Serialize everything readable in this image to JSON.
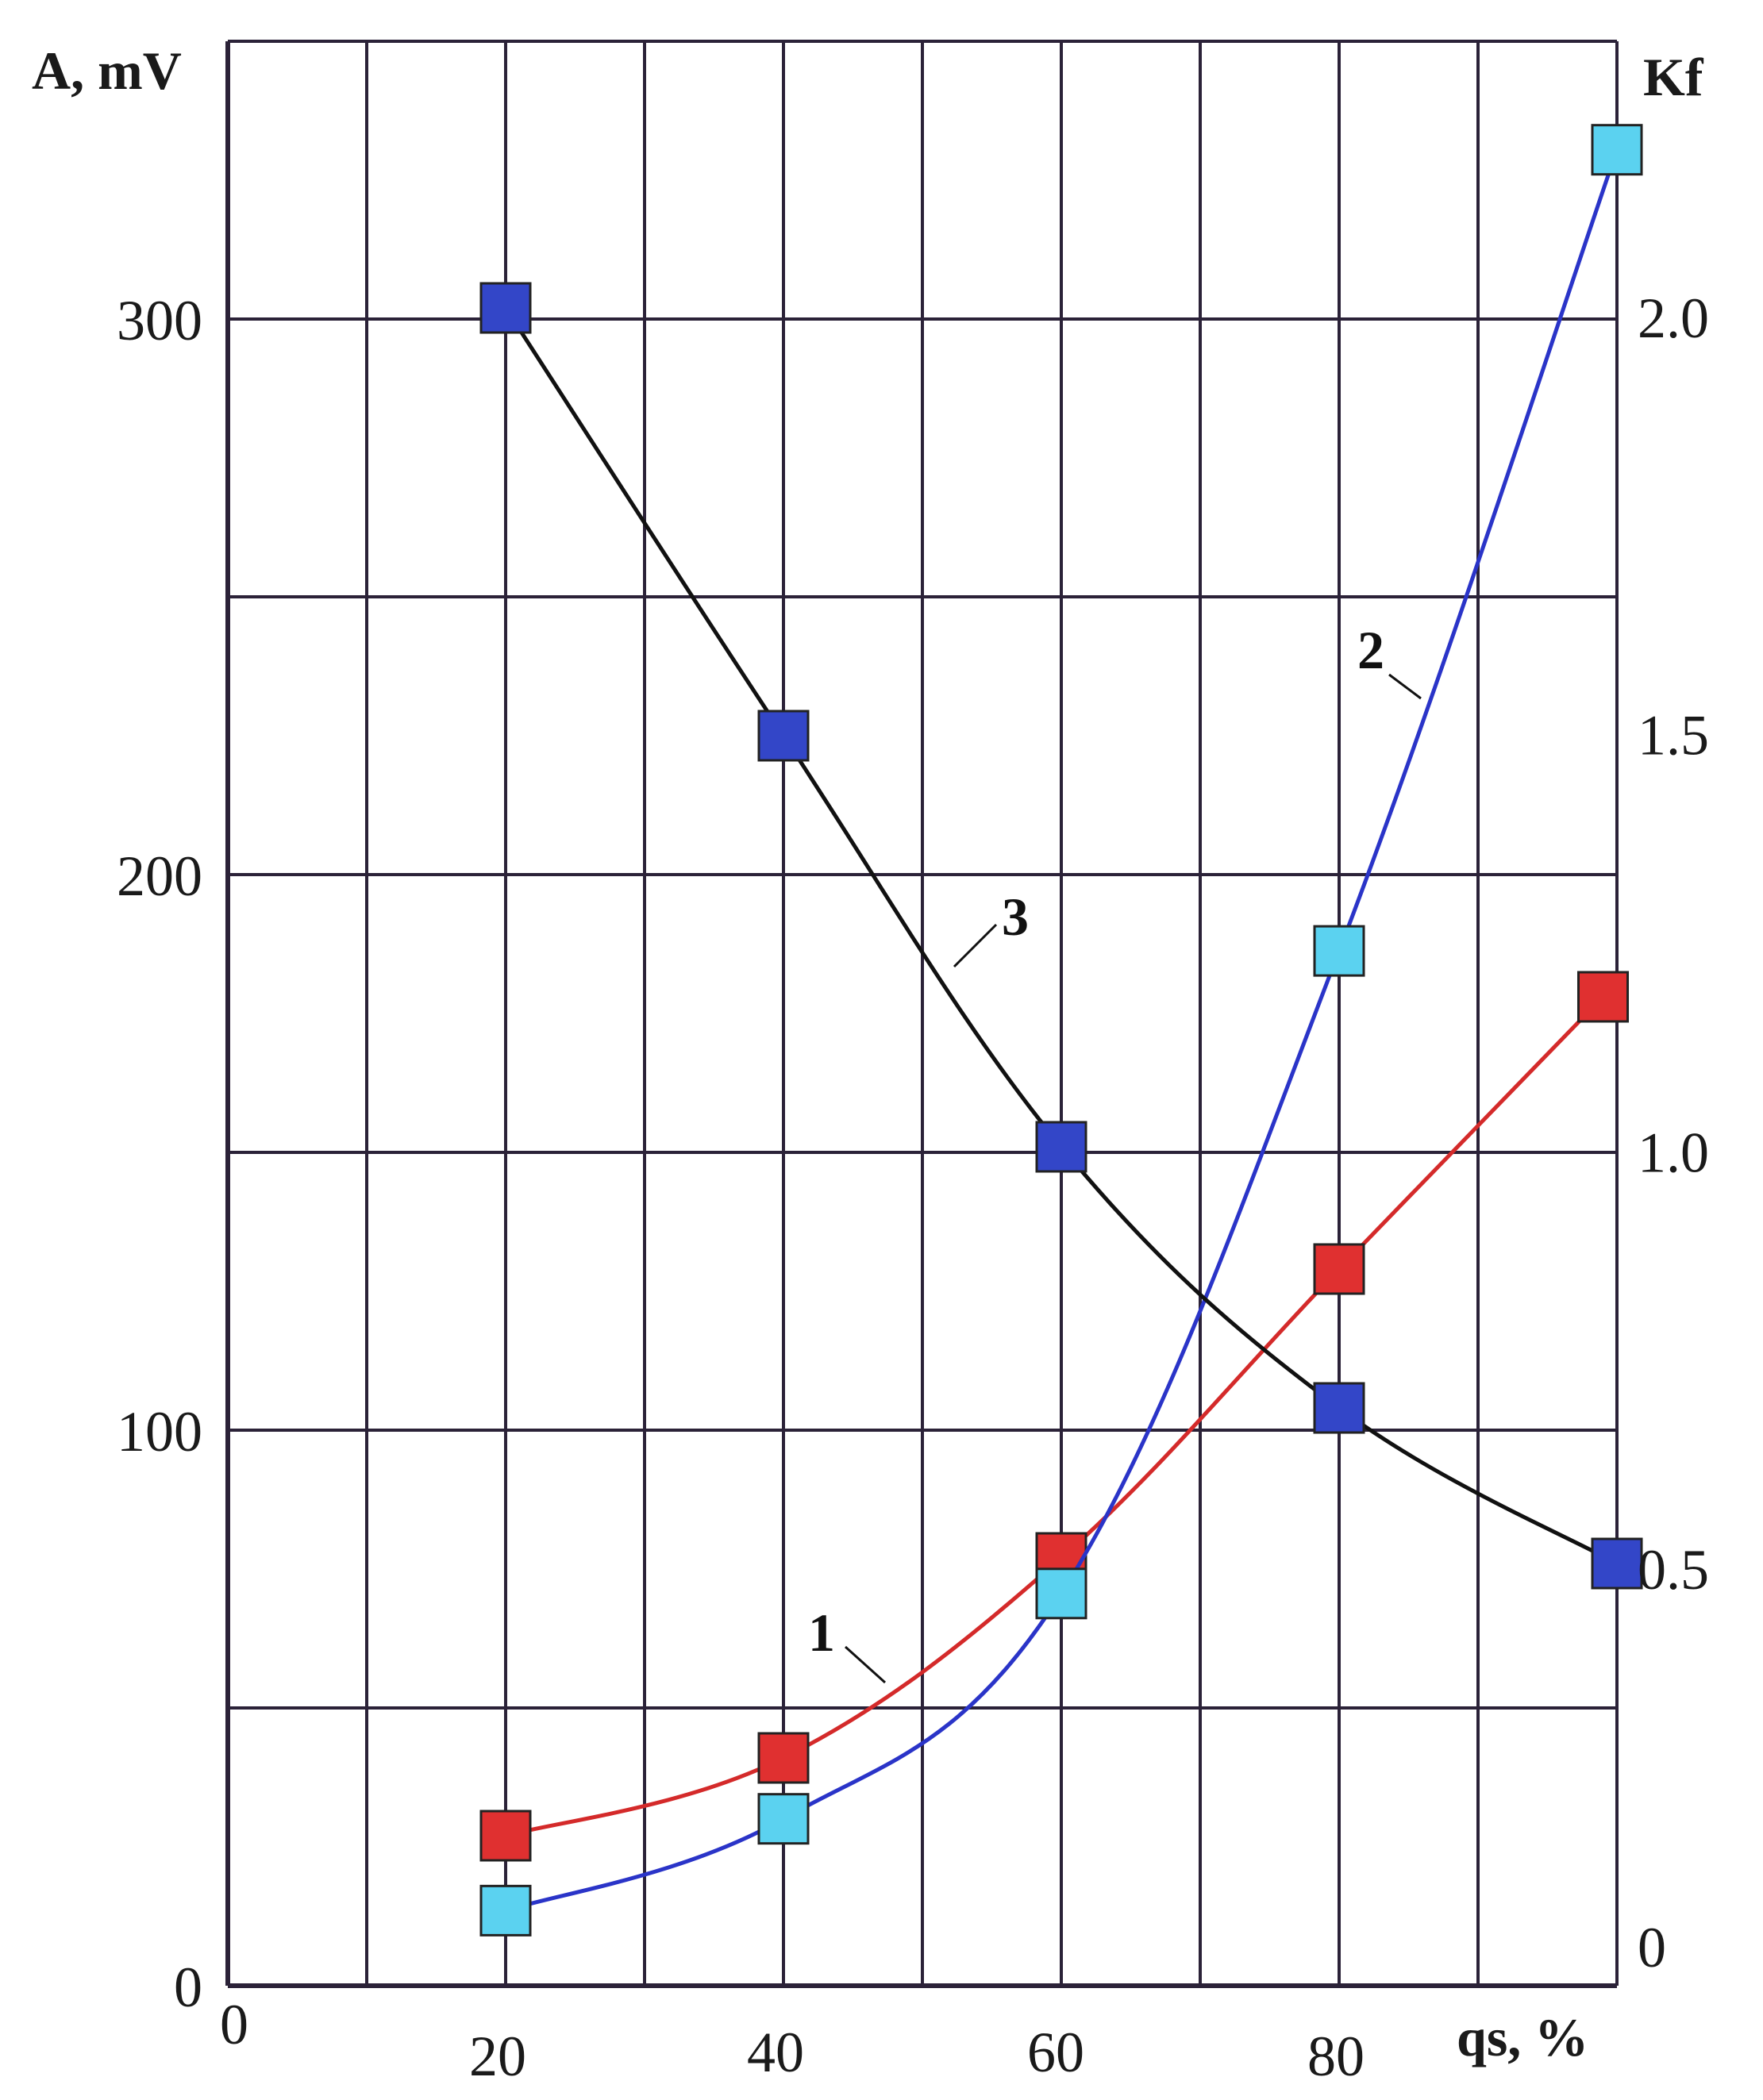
{
  "chart_data": {
    "type": "line",
    "title": "",
    "xlabel": "qs, %",
    "ylabel_left": "A, mV",
    "ylabel_right": "Kf",
    "xlim": [
      0,
      100
    ],
    "ylim_left": [
      0,
      350
    ],
    "ylim_right": [
      0,
      2.33
    ],
    "x_ticks": [
      "0",
      "20",
      "40",
      "60",
      "80"
    ],
    "y_left_ticks": [
      "0",
      "100",
      "200",
      "300"
    ],
    "y_right_ticks": [
      "0",
      "0.5",
      "1.0",
      "1.5",
      "2.0"
    ],
    "grid": true,
    "legend": "none",
    "series": [
      {
        "name": "1",
        "axis": "left",
        "color": "#d42a2a",
        "marker_color": "#e03030",
        "x": [
          20,
          40,
          60,
          80,
          99
        ],
        "y": [
          27,
          41,
          77,
          129,
          178
        ]
      },
      {
        "name": "2",
        "axis": "right",
        "color": "#2a34c8",
        "marker_color": "#5bd2f0",
        "x": [
          20,
          40,
          60,
          80,
          100
        ],
        "y": [
          0.09,
          0.2,
          0.47,
          1.24,
          2.2
        ]
      },
      {
        "name": "3",
        "axis": "left",
        "color": "#111111",
        "marker_color": "#3346c8",
        "x": [
          20,
          40,
          60,
          80,
          100
        ],
        "y": [
          302,
          225,
          151,
          104,
          76
        ]
      }
    ]
  }
}
